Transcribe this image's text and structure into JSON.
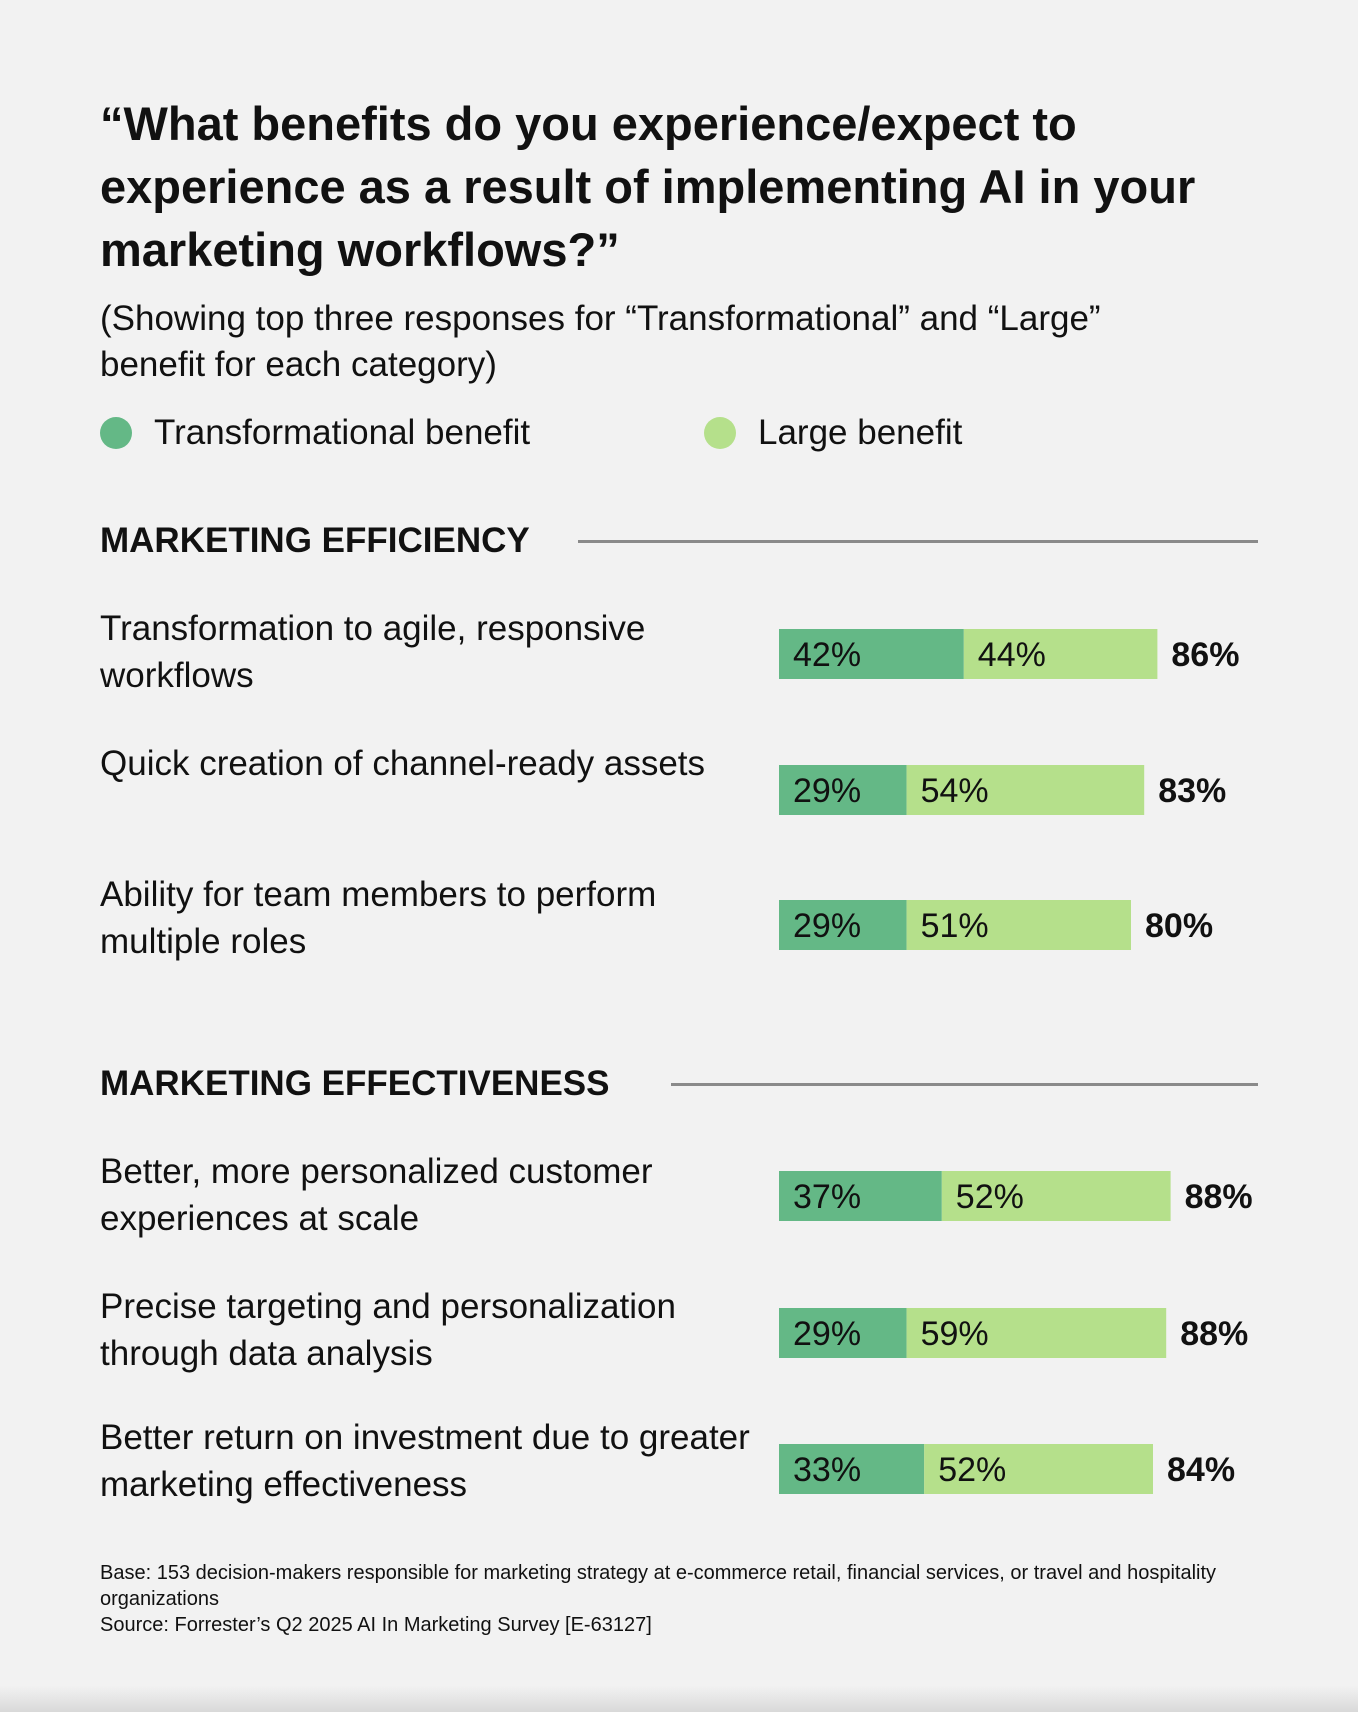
{
  "chart_data": {
    "type": "bar",
    "orientation": "horizontal",
    "stacked": true,
    "title": "“What benefits do you experience/expect to experience as a result of implementing AI in your marketing workflows?”",
    "subtitle": "(Showing top three responses for “Transformational” and “Large” benefit for each category)",
    "legend": [
      {
        "name": "Transformational benefit",
        "color": "#64b886"
      },
      {
        "name": "Large benefit",
        "color": "#b5e08b"
      }
    ],
    "value_suffix": "%",
    "sections": [
      {
        "name": "MARKETING EFFICIENCY",
        "rows": [
          {
            "label": "Transformation to agile, responsive workflows",
            "transformational": 42,
            "large": 44,
            "total": 86
          },
          {
            "label": "Quick creation of channel-ready assets",
            "transformational": 29,
            "large": 54,
            "total": 83
          },
          {
            "label": "Ability for team members to perform multiple roles",
            "transformational": 29,
            "large": 51,
            "total": 80
          }
        ]
      },
      {
        "name": "MARKETING EFFECTIVENESS",
        "rows": [
          {
            "label": "Better, more personalized customer experiences at scale",
            "transformational": 37,
            "large": 52,
            "total": 88
          },
          {
            "label": "Precise targeting and personalization through data analysis",
            "transformational": 29,
            "large": 59,
            "total": 88
          },
          {
            "label": "Better return on investment due to greater marketing effectiveness",
            "transformational": 33,
            "large": 52,
            "total": 84
          }
        ]
      }
    ]
  },
  "footnote": {
    "base": "Base: 153 decision-makers responsible for marketing strategy at e-commerce retail, financial services, or travel and hospitality organizations",
    "source": "Source: Forrester’s Q2 2025 AI In Marketing Survey [E-63127]"
  }
}
